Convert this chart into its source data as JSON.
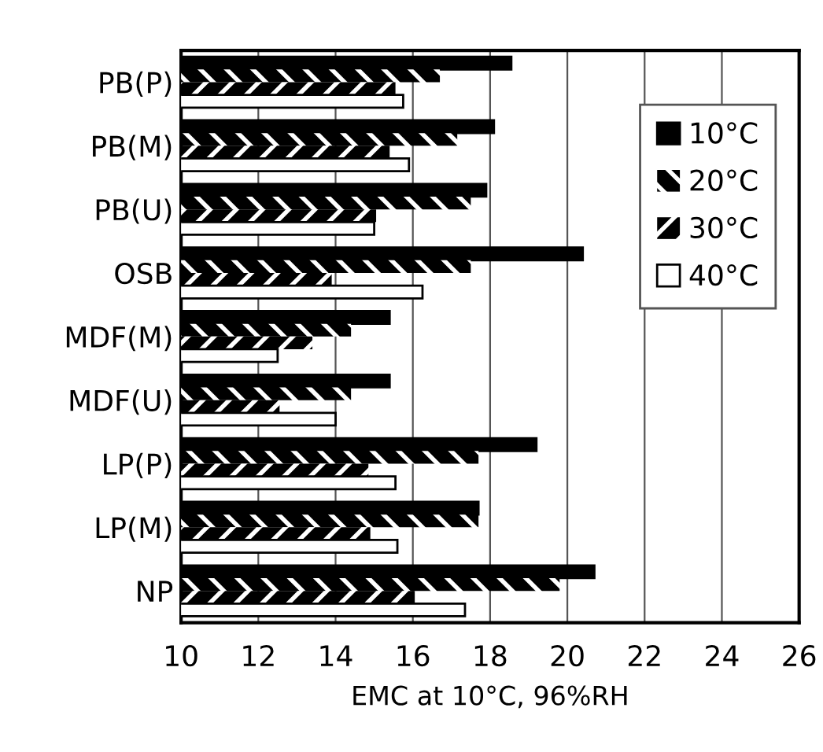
{
  "chart_data": {
    "type": "bar",
    "orientation": "horizontal",
    "xlabel": "EMC at 10°C, 96%RH",
    "categories": [
      "PB(P)",
      "PB(M)",
      "PB(U)",
      "OSB",
      "MDF(M)",
      "MDF(U)",
      "LP(P)",
      "LP(M)",
      "NP"
    ],
    "series": [
      {
        "name": "10°C",
        "color": "#000000",
        "values": [
          18.55,
          18.1,
          17.9,
          20.4,
          15.4,
          15.4,
          19.2,
          17.7,
          20.7
        ]
      },
      {
        "name": "20°C",
        "color": "#000000",
        "values": [
          16.7,
          17.15,
          17.5,
          17.5,
          14.4,
          14.4,
          17.7,
          17.7,
          19.8
        ]
      },
      {
        "name": "30°C",
        "color": "#000000",
        "values": [
          15.55,
          15.4,
          15.05,
          13.9,
          13.4,
          12.55,
          14.85,
          14.9,
          16.05
        ]
      },
      {
        "name": "40°C",
        "color": "#ffffff",
        "values": [
          15.75,
          15.9,
          15.0,
          16.25,
          12.5,
          14.0,
          15.55,
          15.6,
          17.35
        ]
      }
    ],
    "xlim": [
      10,
      26
    ],
    "xticks": [
      10,
      12,
      14,
      16,
      18,
      20,
      22,
      24,
      26
    ],
    "grid": "x",
    "legend": "top right"
  }
}
